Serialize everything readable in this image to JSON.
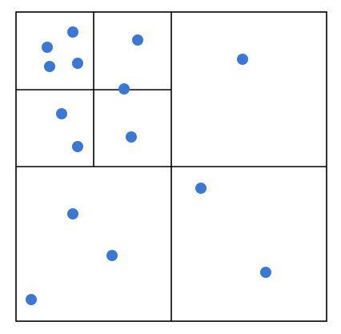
{
  "diagram": {
    "type": "quadtree",
    "line_color": "#000000",
    "point_color": "#3a78d8",
    "background_color": "#ffffff",
    "regions": [
      {
        "id": "root",
        "level": 0
      },
      {
        "id": "nw",
        "level": 1,
        "parent": "root"
      },
      {
        "id": "ne",
        "level": 1,
        "parent": "root"
      },
      {
        "id": "sw",
        "level": 1,
        "parent": "root"
      },
      {
        "id": "se",
        "level": 1,
        "parent": "root"
      },
      {
        "id": "nw-nw",
        "level": 2,
        "parent": "nw"
      },
      {
        "id": "nw-ne",
        "level": 2,
        "parent": "nw"
      },
      {
        "id": "nw-sw",
        "level": 2,
        "parent": "nw"
      },
      {
        "id": "nw-se",
        "level": 2,
        "parent": "nw"
      }
    ],
    "points": [
      {
        "region": "nw-nw"
      },
      {
        "region": "nw-nw"
      },
      {
        "region": "nw-nw"
      },
      {
        "region": "nw-nw"
      },
      {
        "region": "nw-ne"
      },
      {
        "region": "nw-se"
      },
      {
        "region": "nw-sw"
      },
      {
        "region": "nw-sw"
      },
      {
        "region": "nw-se"
      },
      {
        "region": "ne"
      },
      {
        "region": "se"
      },
      {
        "region": "sw"
      },
      {
        "region": "sw"
      },
      {
        "region": "se"
      },
      {
        "region": "sw"
      }
    ]
  }
}
